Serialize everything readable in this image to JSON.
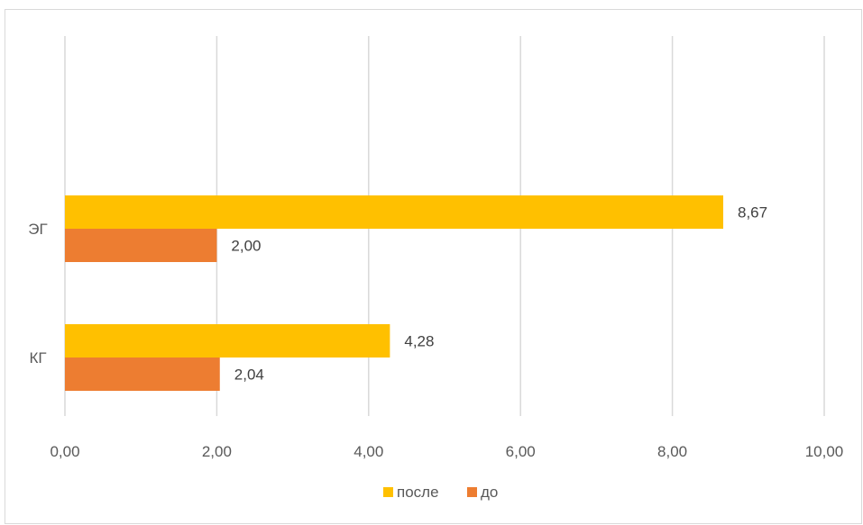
{
  "chart_data": {
    "type": "bar",
    "orientation": "horizontal",
    "categories": [
      "КГ",
      "ЭГ"
    ],
    "series": [
      {
        "name": "до",
        "values": [
          2.04,
          2.0
        ],
        "color": "#ED7D31",
        "labels": [
          "2,04",
          "2,00"
        ]
      },
      {
        "name": "после",
        "values": [
          4.28,
          8.67
        ],
        "color": "#FFC000",
        "labels": [
          "4,28",
          "8,67"
        ]
      }
    ],
    "xlim": [
      0,
      10
    ],
    "x_ticks": [
      0,
      2,
      4,
      6,
      8,
      10
    ],
    "x_tick_labels": [
      "0,00",
      "2,00",
      "4,00",
      "6,00",
      "8,00",
      "10,00"
    ],
    "grid": true,
    "legend_position": "bottom",
    "legend_order": [
      "после",
      "до"
    ],
    "title": "",
    "xlabel": "",
    "ylabel": ""
  }
}
